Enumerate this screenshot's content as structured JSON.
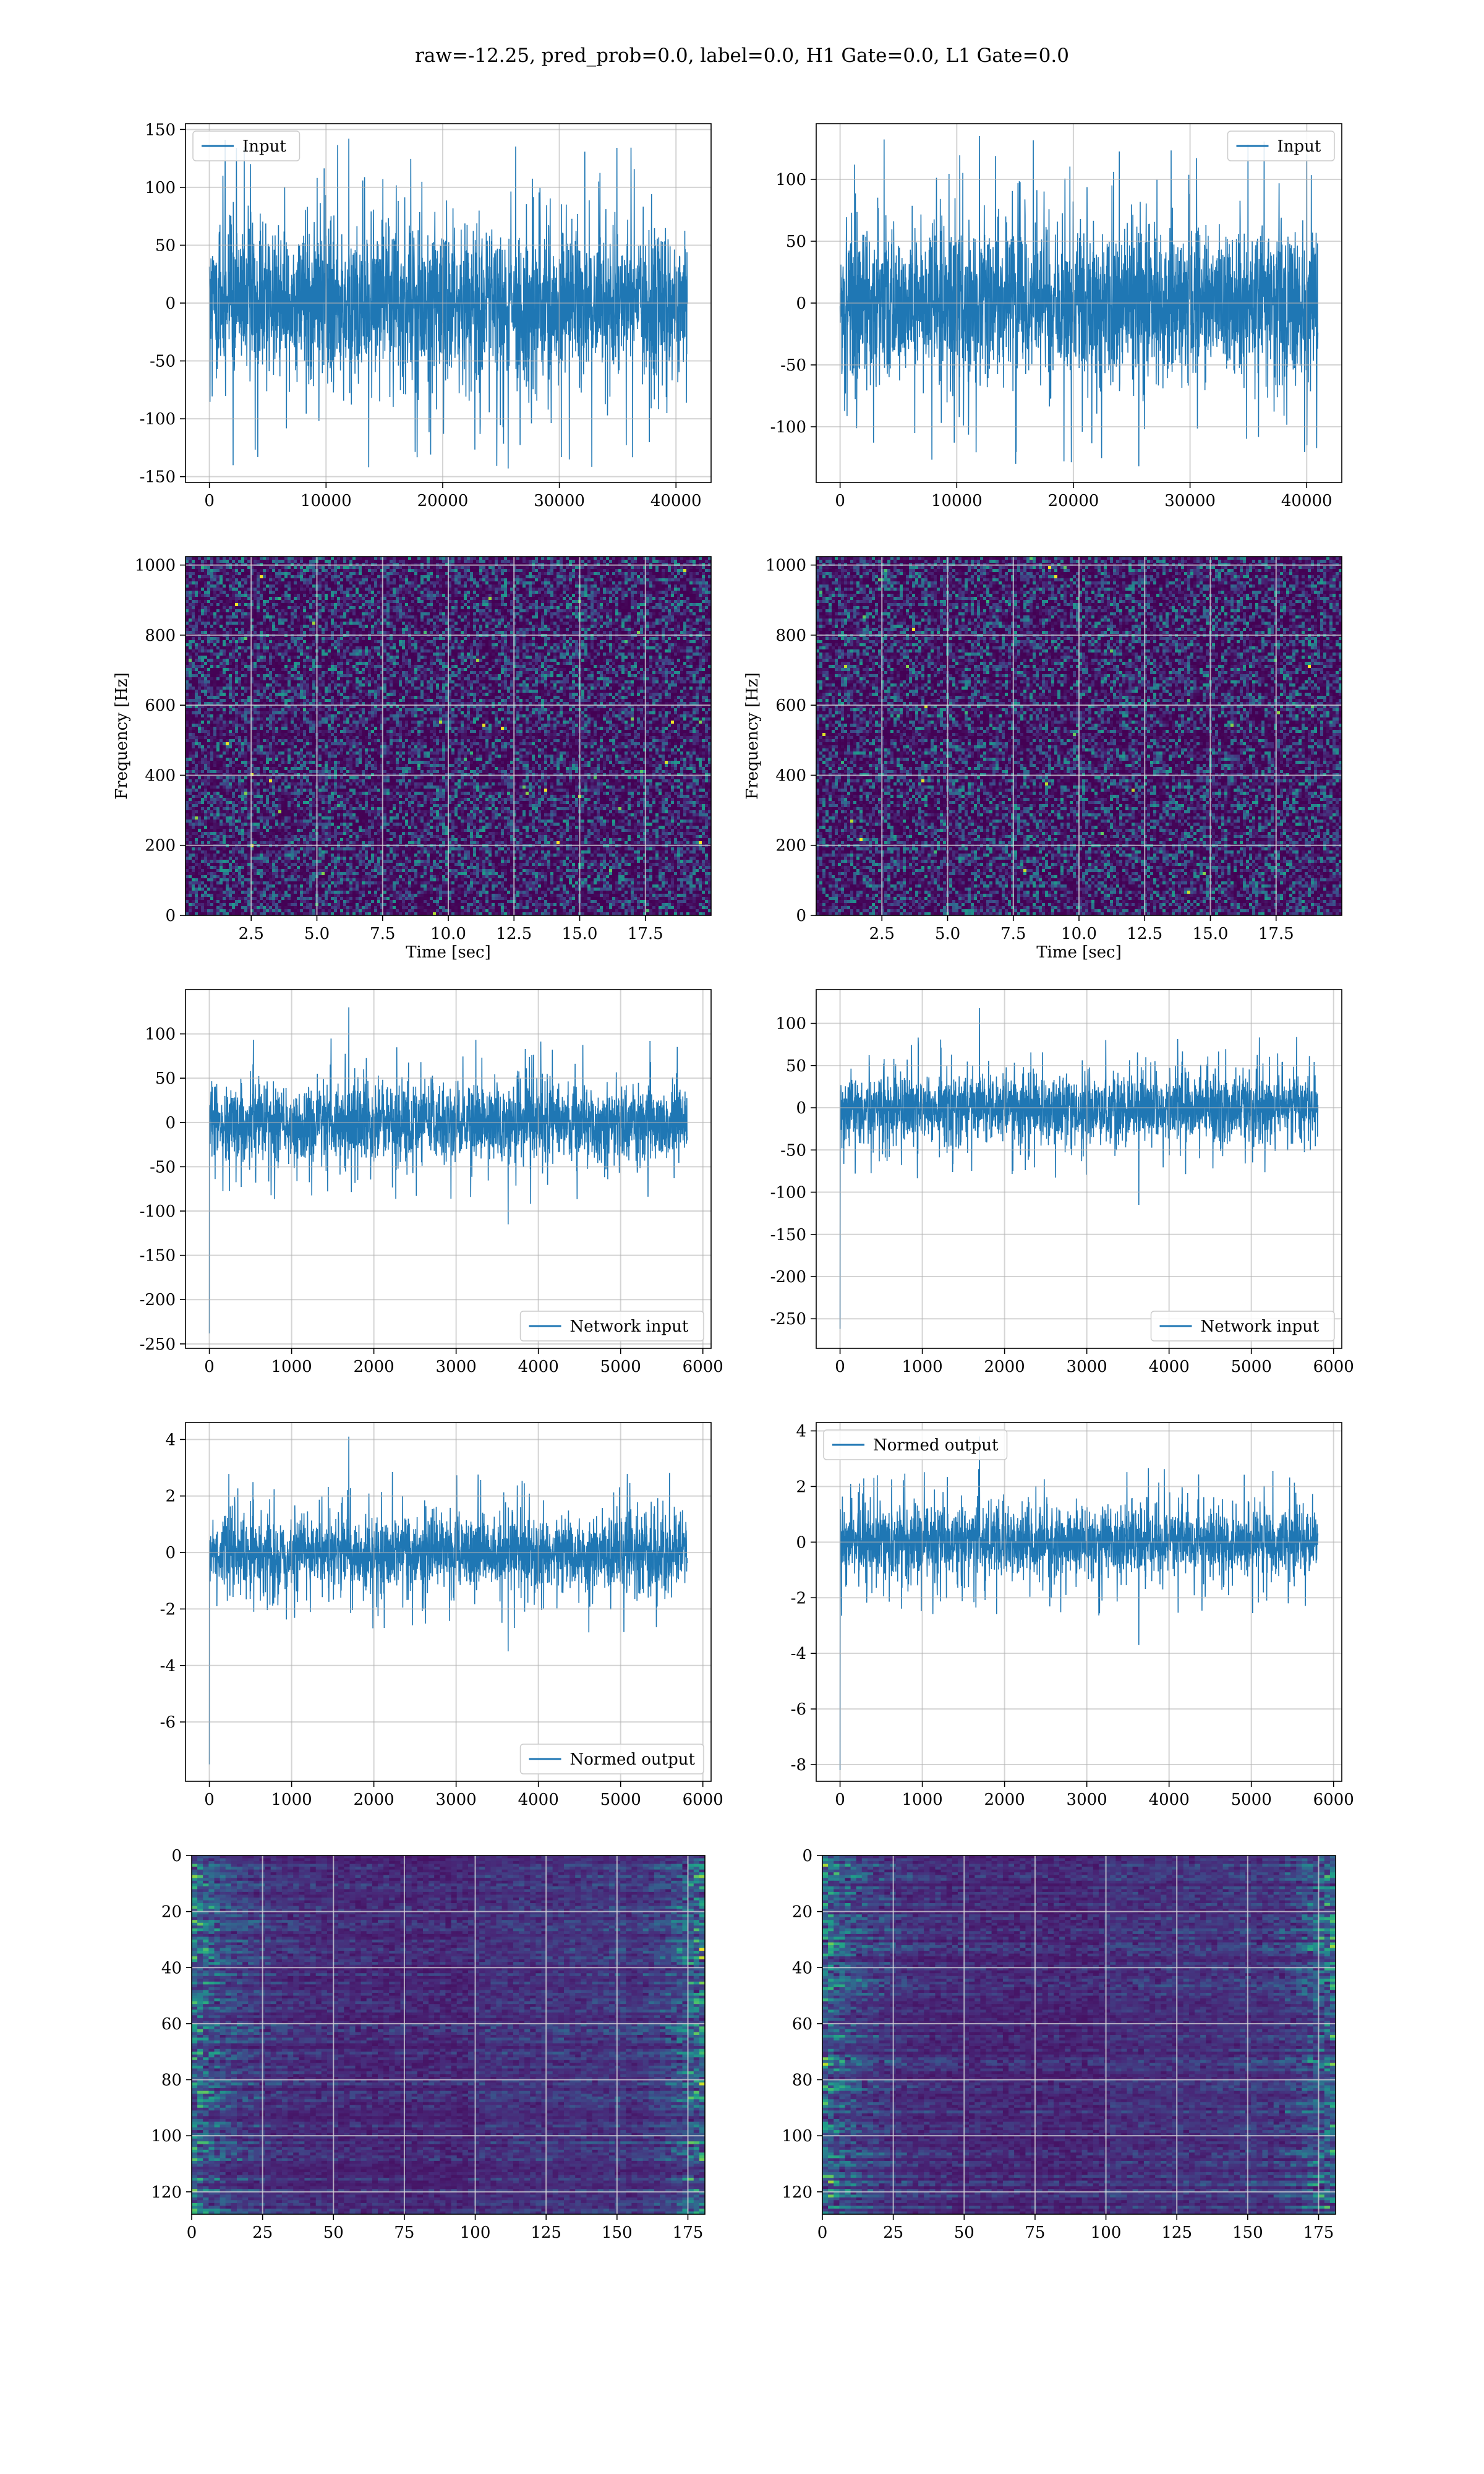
{
  "figure": {
    "title": "raw=-12.25, pred_prob=0.0, label=0.0, H1 Gate=0.0, L1 Gate=0.0",
    "line_color": "#1f77b4",
    "grid_color": "#b0b0b0"
  },
  "chart_data": [
    {
      "id": "input-h1",
      "type": "line",
      "title": "",
      "xlabel": "",
      "ylabel": "",
      "xlim": [
        -2048,
        43008
      ],
      "ylim": [
        -155,
        155
      ],
      "xticks": [
        0,
        10000,
        20000,
        30000,
        40000
      ],
      "yticks": [
        -150,
        -100,
        -50,
        0,
        50,
        100,
        150
      ],
      "series": [
        {
          "name": "Input",
          "x_range": [
            0,
            40960
          ],
          "typical_band": [
            -75,
            75
          ],
          "peak_max": 142,
          "peak_min": -143
        }
      ],
      "legend": "upper-left",
      "grid": true
    },
    {
      "id": "input-l1",
      "type": "line",
      "title": "",
      "xlabel": "",
      "ylabel": "",
      "xlim": [
        -2048,
        43008
      ],
      "ylim": [
        -145,
        145
      ],
      "xticks": [
        0,
        10000,
        20000,
        30000,
        40000
      ],
      "yticks": [
        -100,
        -50,
        0,
        50,
        100
      ],
      "series": [
        {
          "name": "Input",
          "x_range": [
            0,
            40960
          ],
          "typical_band": [
            -70,
            70
          ],
          "peak_max": 135,
          "peak_min": -132
        }
      ],
      "legend": "upper-right",
      "grid": true
    },
    {
      "id": "spectrogram-h1",
      "type": "heatmap",
      "title": "",
      "xlabel": "Time [sec]",
      "ylabel": "Frequency [Hz]",
      "xlim": [
        0,
        20
      ],
      "ylim": [
        0,
        1024
      ],
      "xticks": [
        2.5,
        5.0,
        7.5,
        10.0,
        12.5,
        15.0,
        17.5
      ],
      "yticks": [
        0,
        200,
        400,
        600,
        800,
        1000
      ],
      "colormap": "viridis",
      "grid": true
    },
    {
      "id": "spectrogram-l1",
      "type": "heatmap",
      "title": "",
      "xlabel": "Time [sec]",
      "ylabel": "Frequency [Hz]",
      "xlim": [
        0,
        20
      ],
      "ylim": [
        0,
        1024
      ],
      "xticks": [
        2.5,
        5.0,
        7.5,
        10.0,
        12.5,
        15.0,
        17.5
      ],
      "yticks": [
        0,
        200,
        400,
        600,
        800,
        1000
      ],
      "colormap": "viridis",
      "grid": true
    },
    {
      "id": "network-input-h1",
      "type": "line",
      "title": "",
      "xlabel": "",
      "ylabel": "",
      "xlim": [
        -290,
        6100
      ],
      "ylim": [
        -255,
        150
      ],
      "xticks": [
        0,
        1000,
        2000,
        3000,
        4000,
        5000,
        6000
      ],
      "yticks": [
        -250,
        -200,
        -150,
        -100,
        -50,
        0,
        50,
        100
      ],
      "series": [
        {
          "name": "Network input",
          "x_range": [
            0,
            5810
          ],
          "typical_band": [
            -50,
            50
          ],
          "peak_max": 130,
          "peak_min": -115,
          "initial_spike": -238
        }
      ],
      "legend": "lower-right",
      "grid": true
    },
    {
      "id": "network-input-l1",
      "type": "line",
      "title": "",
      "xlabel": "",
      "ylabel": "",
      "xlim": [
        -290,
        6100
      ],
      "ylim": [
        -285,
        140
      ],
      "xticks": [
        0,
        1000,
        2000,
        3000,
        4000,
        5000,
        6000
      ],
      "yticks": [
        -250,
        -200,
        -150,
        -100,
        -50,
        0,
        50,
        100
      ],
      "series": [
        {
          "name": "Network input",
          "x_range": [
            0,
            5810
          ],
          "typical_band": [
            -45,
            45
          ],
          "peak_max": 118,
          "peak_min": -115,
          "initial_spike": -262
        }
      ],
      "legend": "lower-right",
      "grid": true
    },
    {
      "id": "normed-output-h1",
      "type": "line",
      "title": "",
      "xlabel": "",
      "ylabel": "",
      "xlim": [
        -290,
        6100
      ],
      "ylim": [
        -8.1,
        4.6
      ],
      "xticks": [
        0,
        1000,
        2000,
        3000,
        4000,
        5000,
        6000
      ],
      "yticks": [
        -6,
        -4,
        -2,
        0,
        2,
        4
      ],
      "series": [
        {
          "name": "Normed output",
          "x_range": [
            0,
            5810
          ],
          "typical_band": [
            -1.5,
            1.5
          ],
          "peak_max": 4.1,
          "peak_min": -3.5,
          "initial_spike": -7.5
        }
      ],
      "legend": "lower-right",
      "grid": true
    },
    {
      "id": "normed-output-l1",
      "type": "line",
      "title": "",
      "xlabel": "",
      "ylabel": "",
      "xlim": [
        -290,
        6100
      ],
      "ylim": [
        -8.6,
        4.3
      ],
      "xticks": [
        0,
        1000,
        2000,
        3000,
        4000,
        5000,
        6000
      ],
      "yticks": [
        -8,
        -6,
        -4,
        -2,
        0,
        2,
        4
      ],
      "series": [
        {
          "name": "Normed output",
          "x_range": [
            0,
            5810
          ],
          "typical_band": [
            -1.4,
            1.4
          ],
          "peak_max": 3.8,
          "peak_min": -3.7,
          "initial_spike": -8.2
        }
      ],
      "legend": "upper-left",
      "grid": true
    },
    {
      "id": "feature-map-h1",
      "type": "heatmap",
      "title": "",
      "xlabel": "",
      "ylabel": "",
      "xlim": [
        0,
        181
      ],
      "ylim": [
        128,
        0
      ],
      "xticks": [
        0,
        25,
        50,
        75,
        100,
        125,
        150,
        175
      ],
      "yticks": [
        0,
        20,
        40,
        60,
        80,
        100,
        120
      ],
      "colormap": "viridis",
      "grid": true
    },
    {
      "id": "feature-map-l1",
      "type": "heatmap",
      "title": "",
      "xlabel": "",
      "ylabel": "",
      "xlim": [
        0,
        181
      ],
      "ylim": [
        128,
        0
      ],
      "xticks": [
        0,
        25,
        50,
        75,
        100,
        125,
        150,
        175
      ],
      "yticks": [
        0,
        20,
        40,
        60,
        80,
        100,
        120
      ],
      "colormap": "viridis",
      "grid": true
    }
  ]
}
